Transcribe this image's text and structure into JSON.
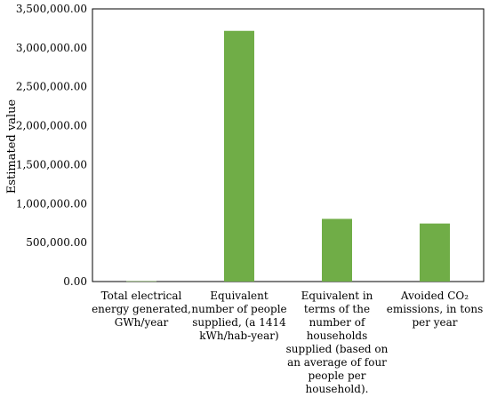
{
  "chart_data": {
    "type": "bar",
    "title": "",
    "xlabel": "",
    "ylabel": "Estimated value",
    "ylim": [
      0,
      3500000
    ],
    "y_ticks": [
      "0.00",
      "500,000.00",
      "1,000,000.00",
      "1,500,000.00",
      "2,000,000.00",
      "2,500,000.00",
      "3,000,000.00",
      "3,500,000.00"
    ],
    "y_tick_values": [
      0,
      500000,
      1000000,
      1500000,
      2000000,
      2500000,
      3000000,
      3500000
    ],
    "grid": false,
    "legend": "none",
    "bar_color": "#70AD47",
    "categories": [
      [
        "Total electrical",
        "energy generated,",
        "GWh/year"
      ],
      [
        "Equivalent",
        "number of people",
        "supplied, (a 1414",
        "kWh/hab-year)"
      ],
      [
        "Equivalent in",
        "terms of the",
        "number of",
        "households",
        "supplied (based on",
        "an average of four",
        "people per",
        "household)."
      ],
      [
        "Avoided CO₂",
        "emissions, in tons",
        "per year"
      ]
    ],
    "values": [
      4550,
      3218000,
      804500,
      745000
    ]
  }
}
